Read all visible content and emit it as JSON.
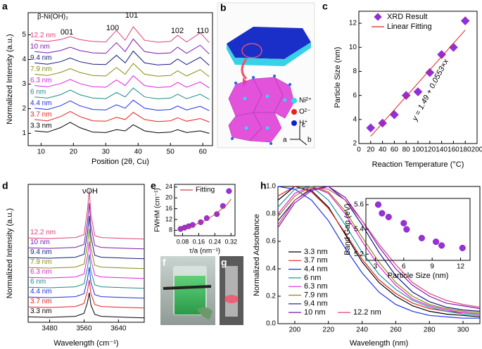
{
  "panel_labels": [
    "a",
    "b",
    "c",
    "d",
    "e",
    "f",
    "g",
    "h"
  ],
  "panel_b": {
    "legend": [
      "Ni²⁺",
      "O²⁻",
      "H⁺"
    ],
    "axes": [
      "c",
      "a",
      "b"
    ]
  },
  "chart_data": [
    {
      "type": "line",
      "xlabel": "Position (2θ, Cu)",
      "ylabel": "Normalized Intensity (a.u.)",
      "annotations": [
        "β-Ni(OH)₂",
        "001",
        "100",
        "101",
        "102",
        "110"
      ],
      "xlim": [
        6,
        63
      ],
      "xticks": [
        10,
        20,
        30,
        40,
        50,
        60
      ],
      "ylim": [
        0.5,
        5.9
      ],
      "yticks": [
        1,
        2,
        3,
        4,
        5
      ],
      "x": [
        8,
        12,
        16,
        19,
        22,
        26,
        30,
        33.3,
        36,
        38.5,
        42,
        46,
        50,
        52.2,
        55,
        59.2,
        62
      ],
      "series": [
        {
          "name": "3.3 nm",
          "color": "#000000",
          "values": [
            1.1,
            1.05,
            1.23,
            1.45,
            1.23,
            1.05,
            1.03,
            1.15,
            1.1,
            1.35,
            1.1,
            1.02,
            1.05,
            1.15,
            1.03,
            1.1,
            1.0
          ]
        },
        {
          "name": "3.7 nm",
          "color": "#e8201c",
          "values": [
            1.56,
            1.51,
            1.68,
            1.89,
            1.68,
            1.51,
            1.49,
            1.65,
            1.56,
            1.85,
            1.56,
            1.48,
            1.51,
            1.63,
            1.49,
            1.6,
            1.46
          ]
        },
        {
          "name": "4.4 nm",
          "color": "#1c2ee8",
          "values": [
            2.02,
            1.97,
            2.12,
            2.32,
            2.12,
            1.97,
            1.95,
            2.16,
            2.02,
            2.35,
            2.02,
            1.94,
            1.97,
            2.11,
            1.95,
            2.1,
            1.92
          ]
        },
        {
          "name": "6 nm",
          "color": "#1a8a8a",
          "values": [
            2.48,
            2.43,
            2.57,
            2.76,
            2.57,
            2.43,
            2.41,
            2.66,
            2.48,
            2.84,
            2.48,
            2.4,
            2.43,
            2.59,
            2.41,
            2.59,
            2.38
          ]
        },
        {
          "name": "6.3 nm",
          "color": "#e020e0",
          "values": [
            2.94,
            2.89,
            3.02,
            3.19,
            3.02,
            2.89,
            2.87,
            3.17,
            2.94,
            3.34,
            2.94,
            2.86,
            2.89,
            3.07,
            2.87,
            3.09,
            2.84
          ]
        },
        {
          "name": "7.9 nm",
          "color": "#8a8a10",
          "values": [
            3.4,
            3.35,
            3.47,
            3.63,
            3.47,
            3.35,
            3.33,
            3.67,
            3.4,
            3.84,
            3.4,
            3.32,
            3.35,
            3.54,
            3.33,
            3.59,
            3.3
          ]
        },
        {
          "name": "9.4 nm",
          "color": "#101a80",
          "values": [
            3.86,
            3.81,
            3.91,
            4.06,
            3.91,
            3.81,
            3.79,
            4.17,
            3.86,
            4.34,
            3.86,
            3.78,
            3.81,
            4.02,
            3.79,
            4.09,
            3.76
          ]
        },
        {
          "name": "10 nm",
          "color": "#7a18b0",
          "values": [
            4.32,
            4.27,
            4.36,
            4.5,
            4.36,
            4.27,
            4.25,
            4.68,
            4.32,
            4.83,
            4.32,
            4.24,
            4.27,
            4.5,
            4.25,
            4.58,
            4.22
          ]
        },
        {
          "name": "12.2 nm",
          "color": "#e0407a",
          "values": [
            4.78,
            4.73,
            4.81,
            4.93,
            4.81,
            4.73,
            4.71,
            5.18,
            4.78,
            5.33,
            4.78,
            4.7,
            4.73,
            4.98,
            4.71,
            5.08,
            4.68
          ]
        }
      ]
    },
    {
      "type": "scatter",
      "xlabel": "Reaction Temperature (°C)",
      "ylabel": "Particle Size (nm)",
      "annotations": [
        "y = 1.49 + 0.0553×x"
      ],
      "xlim": [
        0,
        200
      ],
      "xticks": [
        0,
        20,
        40,
        60,
        80,
        100,
        120,
        140,
        160,
        180,
        200
      ],
      "ylim": [
        2,
        13
      ],
      "yticks": [
        2,
        4,
        6,
        8,
        10,
        12
      ],
      "series": [
        {
          "name": "XRD Result",
          "color": "#9030d8",
          "marker": "diamond",
          "x": [
            20,
            40,
            60,
            80,
            100,
            120,
            140,
            160,
            180
          ],
          "values": [
            3.3,
            3.7,
            4.4,
            6,
            6.3,
            7.9,
            9.4,
            10,
            12.2
          ]
        },
        {
          "name": "Linear Fitting",
          "color": "#e02020",
          "style": "line",
          "x": [
            20,
            180
          ],
          "values": [
            2.6,
            11.44
          ]
        }
      ]
    },
    {
      "type": "line",
      "xlabel": "Wavelength (cm⁻¹)",
      "ylabel": "Normalized Intensity (a.u.)",
      "annotations": [
        "νOH"
      ],
      "xlim": [
        3430,
        3700
      ],
      "xticks": [
        3480,
        3560,
        3640
      ],
      "ylim": [
        0,
        14
      ],
      "x": [
        3430,
        3480,
        3540,
        3560,
        3568,
        3572,
        3576,
        3585,
        3600,
        3660,
        3700
      ],
      "series": [
        {
          "name": "3.3 nm",
          "color": "#000000",
          "values": [
            0.55,
            0.5,
            0.6,
            0.9,
            2.0,
            3.0,
            1.75,
            0.8,
            0.6,
            0.5,
            0.45
          ]
        },
        {
          "name": "3.7 nm",
          "color": "#e8201c",
          "values": [
            1.55,
            1.5,
            1.6,
            1.9,
            3.18,
            4.3,
            2.9,
            1.8,
            1.6,
            1.5,
            1.45
          ]
        },
        {
          "name": "4.4 nm",
          "color": "#1c2ee8",
          "values": [
            2.55,
            2.5,
            2.6,
            2.9,
            4.36,
            5.6,
            4.05,
            2.8,
            2.6,
            2.5,
            2.45
          ]
        },
        {
          "name": "6 nm",
          "color": "#1a8a8a",
          "values": [
            3.55,
            3.5,
            3.6,
            3.9,
            5.54,
            6.9,
            5.2,
            3.8,
            3.6,
            3.5,
            3.45
          ]
        },
        {
          "name": "6.3 nm",
          "color": "#e020e0",
          "values": [
            4.55,
            4.5,
            4.6,
            4.9,
            6.72,
            8.2,
            6.35,
            4.8,
            4.6,
            4.5,
            4.45
          ]
        },
        {
          "name": "7.9 nm",
          "color": "#8a8a10",
          "values": [
            5.55,
            5.5,
            5.6,
            5.9,
            7.9,
            9.5,
            7.5,
            5.8,
            5.6,
            5.5,
            5.45
          ]
        },
        {
          "name": "9.4 nm",
          "color": "#101a80",
          "values": [
            6.55,
            6.5,
            6.6,
            6.9,
            9.08,
            10.8,
            8.65,
            6.8,
            6.6,
            6.5,
            6.45
          ]
        },
        {
          "name": "10 nm",
          "color": "#7a18b0",
          "values": [
            7.55,
            7.5,
            7.6,
            7.9,
            10.26,
            12.1,
            9.8,
            7.8,
            7.6,
            7.5,
            7.45
          ]
        },
        {
          "name": "12.2 nm",
          "color": "#e0407a",
          "values": [
            8.55,
            8.5,
            8.6,
            8.9,
            11.44,
            13.4,
            10.95,
            8.8,
            8.6,
            8.5,
            8.45
          ]
        }
      ]
    },
    {
      "type": "scatter",
      "xlabel": "τ/a (nm⁻¹)",
      "ylabel": "FWHM (cm⁻¹)",
      "xlim": [
        0.04,
        0.34
      ],
      "xticks": [
        0.08,
        0.16,
        0.24,
        0.32
      ],
      "ylim": [
        6,
        25
      ],
      "yticks": [
        8,
        12,
        16,
        20,
        24
      ],
      "series": [
        {
          "color": "#9a30d8",
          "marker": "circle",
          "x": [
            0.07,
            0.09,
            0.11,
            0.13,
            0.17,
            0.2,
            0.25,
            0.28,
            0.31
          ],
          "values": [
            8.5,
            9,
            9.5,
            10,
            11,
            12.5,
            14,
            17,
            22.5
          ]
        },
        {
          "name": "Fitting",
          "color": "#d04040",
          "style": "line",
          "x": [
            0.06,
            0.12,
            0.18,
            0.24,
            0.3,
            0.32
          ],
          "values": [
            8.3,
            9.5,
            11.2,
            13.8,
            17.5,
            19.5
          ]
        }
      ]
    },
    {
      "type": "line",
      "xlabel": "Wavelength (nm)",
      "ylabel": "Normalized Adsorbance",
      "xlim": [
        190,
        310
      ],
      "xticks": [
        200,
        220,
        240,
        260,
        280,
        300
      ],
      "ylim": [
        0,
        1
      ],
      "yticks": [
        {
          "value": 0,
          "label": "0.0"
        },
        0.2,
        0.4,
        0.6,
        0.8,
        {
          "value": 1,
          "label": "1.0"
        }
      ],
      "x": [
        190,
        200,
        210,
        220,
        230,
        240,
        250,
        260,
        270,
        280,
        290,
        300,
        310
      ],
      "series": [
        {
          "name": "3.3 nm",
          "color": "#000000",
          "values": [
            0.9,
            1.0,
            0.97,
            0.85,
            0.65,
            0.45,
            0.3,
            0.2,
            0.13,
            0.09,
            0.07,
            0.06,
            0.05
          ]
        },
        {
          "name": "3.7 nm",
          "color": "#e8201c",
          "values": [
            0.93,
            1.0,
            0.96,
            0.84,
            0.66,
            0.47,
            0.32,
            0.22,
            0.15,
            0.11,
            0.09,
            0.08,
            0.07
          ]
        },
        {
          "name": "4.4 nm",
          "color": "#1c2ee8",
          "values": [
            1.0,
            0.98,
            0.9,
            0.75,
            0.55,
            0.37,
            0.23,
            0.14,
            0.09,
            0.06,
            0.05,
            0.04,
            0.04
          ]
        },
        {
          "name": "6 nm",
          "color": "#1a9a9a",
          "values": [
            0.85,
            0.98,
            1.0,
            0.9,
            0.72,
            0.52,
            0.36,
            0.25,
            0.17,
            0.12,
            0.09,
            0.07,
            0.06
          ]
        },
        {
          "name": "6.3 nm",
          "color": "#e020e0",
          "values": [
            0.8,
            0.95,
            1.0,
            0.95,
            0.8,
            0.6,
            0.42,
            0.28,
            0.18,
            0.13,
            0.1,
            0.08,
            0.07
          ]
        },
        {
          "name": "7.9 nm",
          "color": "#8a8a10",
          "values": [
            0.78,
            0.93,
            1.0,
            0.96,
            0.82,
            0.63,
            0.45,
            0.3,
            0.2,
            0.14,
            0.11,
            0.09,
            0.08
          ]
        },
        {
          "name": "9.4 nm",
          "color": "#101a80",
          "values": [
            0.75,
            0.9,
            0.98,
            1.0,
            0.9,
            0.72,
            0.52,
            0.35,
            0.23,
            0.16,
            0.12,
            0.1,
            0.09
          ]
        },
        {
          "name": "10 nm",
          "color": "#7a18b0",
          "values": [
            0.7,
            0.88,
            0.97,
            1.0,
            0.92,
            0.75,
            0.56,
            0.4,
            0.28,
            0.2,
            0.15,
            0.13,
            0.11
          ]
        },
        {
          "name": "12.2 nm",
          "color": "#e0407a",
          "values": [
            0.72,
            0.9,
            0.99,
            0.98,
            0.9,
            0.75,
            0.58,
            0.43,
            0.3,
            0.22,
            0.17,
            0.14,
            0.12
          ]
        }
      ]
    },
    {
      "type": "scatter",
      "xlabel": "Particle Size (nm)",
      "ylabel": "Band Gap (eV)",
      "xlim": [
        2,
        13
      ],
      "xticks": [
        3,
        6,
        9,
        12
      ],
      "ylim": [
        5.15,
        5.65
      ],
      "yticks": [
        5.2,
        5.4,
        5.6
      ],
      "series": [
        {
          "color": "#9a30d8",
          "marker": "circle",
          "x": [
            3.3,
            3.7,
            4.4,
            6,
            6.3,
            7.9,
            9.4,
            10,
            12.2
          ],
          "values": [
            5.6,
            5.53,
            5.5,
            5.45,
            5.4,
            5.33,
            5.3,
            5.27,
            5.25
          ]
        }
      ]
    }
  ]
}
